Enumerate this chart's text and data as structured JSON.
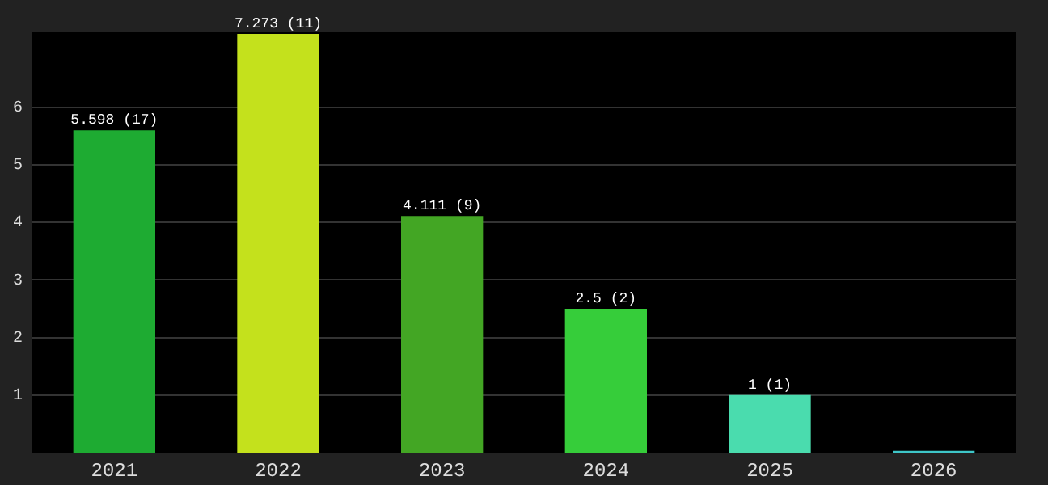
{
  "chart_data": {
    "type": "bar",
    "categories": [
      "2021",
      "2022",
      "2023",
      "2024",
      "2025",
      "2026"
    ],
    "values": [
      5.598,
      7.273,
      4.111,
      2.5,
      1,
      0.03
    ],
    "colors": [
      "#1eab32",
      "#c4e11c",
      "#43a624",
      "#36cd3a",
      "#4adcae",
      "#3ec6c8"
    ],
    "value_labels": [
      "5.598 (17)",
      "7.273 (11)",
      "4.111 (9)",
      "2.5 (2)",
      "1 (1)",
      null
    ],
    "ylim": [
      0,
      7.3
    ],
    "yticks": [
      1,
      2,
      3,
      4,
      5,
      6
    ],
    "grid": "y",
    "legend": false
  }
}
